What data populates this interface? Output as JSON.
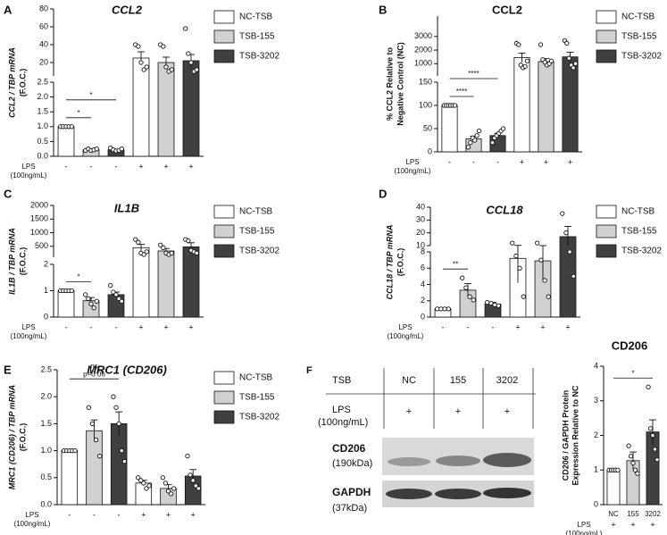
{
  "chart_data": [
    {
      "type": "bar",
      "panel": "A",
      "title": "CCL2",
      "title_style": "italic",
      "ylabel": [
        "CCL2 / TBP mRNA",
        "(F.O.C.)"
      ],
      "xlabel": [
        "LPS",
        "(100ng/mL)"
      ],
      "categories": [
        "-",
        "+"
      ],
      "y_segments": [
        {
          "ylim": [
            0,
            2.5
          ],
          "yticks": [
            {
              "value": 0,
              "label": "0.0"
            },
            0.5,
            {
              "value": 1,
              "label": "1.0"
            },
            1.5,
            {
              "value": 2,
              "label": "2.0"
            },
            2.5
          ]
        },
        {
          "ylim": [
            5,
            80
          ],
          "yticks": [
            20,
            40,
            60,
            80
          ]
        }
      ],
      "series": [
        {
          "name": "NC-TSB",
          "color": "#ffffff",
          "values": [
            1.0,
            25
          ],
          "errors": [
            0,
            7
          ],
          "points": [
            [
              1,
              1,
              1,
              1,
              1
            ],
            [
              40,
              38,
              20,
              12,
              15
            ]
          ]
        },
        {
          "name": "TSB-155",
          "color": "#d0d0d0",
          "values": [
            0.22,
            20
          ],
          "errors": [
            0.02,
            6
          ],
          "points": [
            [
              0.2,
              0.25,
              0.2,
              0.22,
              0.25
            ],
            [
              40,
              38,
              15,
              10,
              12
            ]
          ]
        },
        {
          "name": "TSB-3202",
          "color": "#404040",
          "values": [
            0.22,
            22
          ],
          "errors": [
            0.02,
            7
          ],
          "points": [
            [
              0.28,
              0.22,
              0.18,
              0.2,
              0.25
            ],
            [
              58,
              30,
              20,
              10,
              12
            ]
          ]
        }
      ],
      "significance": [
        {
          "between": [
            0,
            1
          ],
          "label": [
            "*"
          ]
        },
        {
          "between": [
            0,
            2
          ],
          "label": [
            "*"
          ]
        }
      ],
      "legend": "right"
    },
    {
      "type": "bar",
      "panel": "B",
      "title": "CCL2",
      "title_style": "normal",
      "ylabel": [
        "% CCL2 Relative to",
        "Negative Control (NC)"
      ],
      "xlabel": [
        "LPS",
        "(100ng/mL)"
      ],
      "categories": [
        "-",
        "+"
      ],
      "y_segments": [
        {
          "ylim": [
            0,
            150
          ],
          "yticks": [
            0,
            50,
            100,
            150
          ]
        },
        {
          "ylim": [
            100,
            4500
          ],
          "yticks": [
            1000,
            2000,
            3000
          ]
        }
      ],
      "series": [
        {
          "name": "NC-TSB",
          "color": "#ffffff",
          "values": [
            100,
            1450
          ],
          "errors": [
            0,
            330
          ],
          "points": [
            [
              100,
              100,
              100,
              100,
              100,
              100
            ],
            [
              2500,
              2400,
              900,
              700,
              800,
              1200
            ]
          ]
        },
        {
          "name": "TSB-155",
          "color": "#d0d0d0",
          "values": [
            28,
            1150
          ],
          "errors": [
            6,
            220
          ],
          "points": [
            [
              10,
              20,
              30,
              25,
              35,
              45
            ],
            [
              2400,
              1300,
              1100,
              900,
              1000,
              1200
            ]
          ]
        },
        {
          "name": "TSB-3202",
          "color": "#404040",
          "values": [
            35,
            1500
          ],
          "errors": [
            5,
            340
          ],
          "points": [
            [
              20,
              30,
              35,
              40,
              45,
              50
            ],
            [
              2700,
              2500,
              1400,
              900,
              700,
              1000
            ]
          ]
        }
      ],
      "significance": [
        {
          "between": [
            0,
            1
          ],
          "label": [
            "****"
          ]
        },
        {
          "between": [
            0,
            2
          ],
          "label": [
            "****"
          ]
        }
      ],
      "legend": "right"
    },
    {
      "type": "bar",
      "panel": "C",
      "title": "IL1B",
      "title_style": "italic",
      "ylabel": [
        "IL1B / TBP mRNA",
        "(F.O.C.)"
      ],
      "xlabel": [
        "LPS",
        "(100ng/mL)"
      ],
      "categories": [
        "-",
        "+"
      ],
      "y_segments": [
        {
          "ylim": [
            0,
            2
          ],
          "yticks": [
            0,
            1,
            2
          ]
        },
        {
          "ylim": [
            100,
            2000
          ],
          "yticks": [
            500,
            1000,
            1500,
            2000
          ]
        }
      ],
      "series": [
        {
          "name": "NC-TSB",
          "color": "#ffffff",
          "values": [
            1.0,
            450
          ],
          "errors": [
            0,
            120
          ],
          "points": [
            [
              1,
              1,
              1,
              1,
              1
            ],
            [
              750,
              650,
              250,
              200,
              300
            ]
          ]
        },
        {
          "name": "TSB-155",
          "color": "#d0d0d0",
          "values": [
            0.62,
            330
          ],
          "errors": [
            0.12,
            90
          ],
          "points": [
            [
              0.85,
              0.7,
              0.5,
              0.35,
              0.6
            ],
            [
              550,
              450,
              250,
              200,
              250
            ]
          ]
        },
        {
          "name": "TSB-3202",
          "color": "#404040",
          "values": [
            0.85,
            480
          ],
          "errors": [
            0.1,
            150
          ],
          "points": [
            [
              1.2,
              0.95,
              0.85,
              0.7,
              0.6
            ],
            [
              750,
              700,
              350,
              300,
              250
            ]
          ]
        }
      ],
      "significance": [
        {
          "between": [
            0,
            1
          ],
          "label": [
            "*"
          ]
        }
      ],
      "legend": "right"
    },
    {
      "type": "bar",
      "panel": "D",
      "title": "CCL18",
      "title_style": "italic",
      "ylabel": [
        "CCL18 / TBP mRNA",
        "(F.O.C.)"
      ],
      "xlabel": [
        "LPS",
        "(100ng/mL)"
      ],
      "categories": [
        "-",
        "+"
      ],
      "y_segments": [
        {
          "ylim": [
            0,
            8
          ],
          "yticks": [
            0,
            2,
            4,
            6,
            8
          ]
        },
        {
          "ylim": [
            10,
            40
          ],
          "yticks": [
            10,
            20,
            30,
            40
          ]
        }
      ],
      "series": [
        {
          "name": "NC-TSB",
          "color": "#ffffff",
          "values": [
            1.0,
            7.2
          ],
          "errors": [
            0,
            3
          ],
          "points": [
            [
              1,
              1,
              1,
              1
            ],
            [
              12,
              7.5,
              6,
              2.5
            ]
          ]
        },
        {
          "name": "TSB-155",
          "color": "#d0d0d0",
          "values": [
            3.3,
            6.9
          ],
          "errors": [
            0.8,
            2.5
          ],
          "points": [
            [
              4.8,
              3.6,
              2.5,
              2.1
            ],
            [
              12,
              7,
              4.5,
              2.5
            ]
          ]
        },
        {
          "name": "TSB-3202",
          "color": "#404040",
          "values": [
            1.6,
            17
          ],
          "errors": [
            0.2,
            8
          ],
          "points": [
            [
              1.8,
              1.7,
              1.5,
              1.4
            ],
            [
              35,
              20,
              8,
              5
            ]
          ]
        }
      ],
      "significance": [
        {
          "between": [
            0,
            1
          ],
          "label": [
            "**"
          ]
        }
      ],
      "legend": "right"
    },
    {
      "type": "bar",
      "panel": "E",
      "title": "MRC1 (CD206)",
      "title_style": "italic",
      "ylabel": [
        "MRC1 (CD206) / TBP mRNA",
        "(F.O.C.)"
      ],
      "xlabel": [
        "LPS",
        "(100ng/mL)"
      ],
      "categories": [
        "-",
        "+"
      ],
      "ylim": [
        0,
        2.5
      ],
      "yticks": [
        {
          "value": 0,
          "label": "0.0"
        },
        0.5,
        {
          "value": 1,
          "label": "1.0"
        },
        1.5,
        {
          "value": 2,
          "label": "2.0"
        },
        2.5
      ],
      "series": [
        {
          "name": "NC-TSB",
          "color": "#ffffff",
          "values": [
            1.0,
            0.4
          ],
          "errors": [
            0,
            0.05
          ],
          "points": [
            [
              1,
              1,
              1,
              1,
              1
            ],
            [
              0.5,
              0.45,
              0.4,
              0.3,
              0.35
            ]
          ]
        },
        {
          "name": "TSB-155",
          "color": "#d0d0d0",
          "values": [
            1.37,
            0.3
          ],
          "errors": [
            0.2,
            0.07
          ],
          "points": [
            [
              1.8,
              1.5,
              1.2,
              0.9
            ],
            [
              0.5,
              0.4,
              0.25,
              0.2,
              0.3
            ]
          ]
        },
        {
          "name": "TSB-3202",
          "color": "#404040",
          "values": [
            1.5,
            0.53
          ],
          "errors": [
            0.22,
            0.12
          ],
          "points": [
            [
              2.0,
              1.8,
              1.5,
              1.0,
              0.8
            ],
            [
              0.9,
              0.55,
              0.45,
              0.35,
              0.3
            ]
          ]
        }
      ],
      "significance": [
        {
          "between": [
            0,
            2
          ],
          "label": [
            "ns",
            "p=0.06"
          ]
        }
      ],
      "legend": "right"
    },
    {
      "type": "bar",
      "panel": "F",
      "title": "CD206",
      "title_style": "normal",
      "ylabel": [
        "CD206 / GAPDH Protein",
        "Expression Relative to NC"
      ],
      "xlabel": [
        "LPS",
        "(100ng/mL)"
      ],
      "categories": [
        "NC",
        "155",
        "3202"
      ],
      "lps": [
        "+",
        "+",
        "+"
      ],
      "ylim": [
        0,
        4
      ],
      "yticks": [
        0,
        1,
        2,
        3,
        4
      ],
      "values": [
        1.0,
        1.27,
        2.1
      ],
      "errors": [
        0,
        0.25,
        0.35
      ],
      "colors": [
        "#ffffff",
        "#d0d0d0",
        "#404040"
      ],
      "points": [
        [
          1,
          1,
          1,
          1,
          1
        ],
        [
          1.7,
          1.4,
          1.2,
          1.0,
          0.9
        ],
        [
          3.4,
          2.2,
          2.0,
          1.6,
          1.3
        ]
      ],
      "significance": [
        {
          "between": [
            0,
            2
          ],
          "label": [
            "*"
          ]
        }
      ]
    }
  ],
  "blot": {
    "panel": "F",
    "header": [
      "TSB",
      "NC",
      "155",
      "3202"
    ],
    "lps": [
      "LPS",
      "(100ng/mL)"
    ],
    "lps_marks": [
      "+",
      "+",
      "+"
    ],
    "rows": [
      {
        "name": "CD206",
        "size": "(190kDa)"
      },
      {
        "name": "GAPDH",
        "size": "(37kDa)"
      }
    ]
  }
}
